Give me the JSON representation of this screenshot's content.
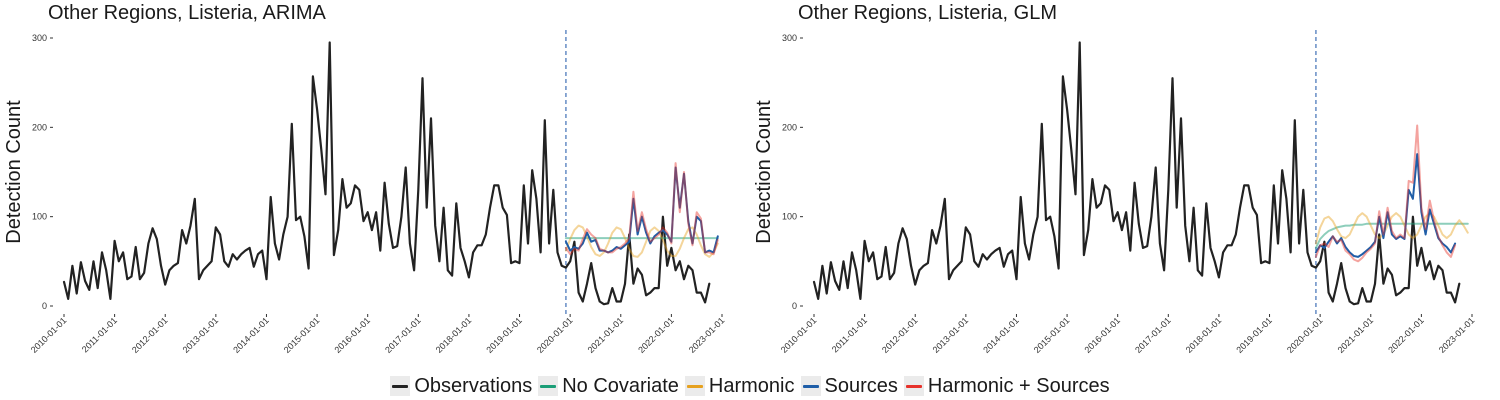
{
  "legend": [
    {
      "label": "Observations",
      "color": "#222222"
    },
    {
      "label": "No Covariate",
      "color": "#1b9e77"
    },
    {
      "label": "Harmonic",
      "color": "#e6a11f"
    },
    {
      "label": "Sources",
      "color": "#1f5ea8"
    },
    {
      "label": "Harmonic + Sources",
      "color": "#e7322b"
    }
  ],
  "chart_data": [
    {
      "type": "line",
      "title": "Other Regions, Listeria, ARIMA",
      "xlabel": "",
      "ylabel": "Detection Count",
      "ylim": [
        0,
        300
      ],
      "yticks": [
        "0",
        "100",
        "200",
        "300"
      ],
      "xlim": [
        "2010-01-01",
        "2023-01-01"
      ],
      "xticks": [
        "2010-01-01",
        "2011-01-01",
        "2012-01-01",
        "2013-01-01",
        "2014-01-01",
        "2015-01-01",
        "2016-01-01",
        "2017-01-01",
        "2018-01-01",
        "2019-01-01",
        "2020-01-01",
        "2021-01-01",
        "2022-01-01",
        "2023-01-01"
      ],
      "vline": "2019-12-01",
      "grid": false,
      "legend_position": "bottom",
      "series": [
        {
          "name": "Observations",
          "color": "#222222",
          "x_start": "2010-01",
          "interval": "month",
          "values": [
            27,
            8,
            45,
            14,
            49,
            28,
            18,
            50,
            20,
            60,
            40,
            8,
            73,
            50,
            60,
            30,
            33,
            66,
            30,
            37,
            70,
            87,
            75,
            45,
            24,
            40,
            45,
            48,
            85,
            70,
            90,
            120,
            30,
            40,
            45,
            50,
            88,
            80,
            50,
            44,
            58,
            52,
            58,
            62,
            65,
            44,
            58,
            62,
            30,
            122,
            70,
            52,
            80,
            100,
            204,
            96,
            100,
            78,
            42,
            257,
            220,
            175,
            125,
            295,
            57,
            85,
            142,
            110,
            115,
            135,
            130,
            95,
            105,
            85,
            105,
            62,
            138,
            92,
            65,
            67,
            100,
            155,
            70,
            40,
            130,
            255,
            110,
            210,
            90,
            50,
            110,
            40,
            34,
            115,
            65,
            50,
            32,
            60,
            68,
            68,
            80,
            110,
            135,
            135,
            110,
            102,
            48,
            50,
            48,
            135,
            70,
            152,
            120,
            60,
            208,
            70,
            130,
            60,
            45,
            43,
            50,
            72,
            15,
            5,
            25,
            48,
            20,
            5,
            2,
            3,
            20,
            5,
            5,
            25,
            80,
            25,
            42,
            35,
            12,
            15,
            20,
            20,
            100,
            45,
            65,
            40,
            50,
            30,
            45,
            40,
            15,
            15,
            4,
            25
          ]
        },
        {
          "name": "No Covariate",
          "color": "#1b9e77",
          "opacity": 0.5,
          "x_start": "2019-12",
          "interval": "month",
          "values": [
            76,
            76,
            76,
            76,
            76,
            76,
            76,
            76,
            76,
            76,
            76,
            76,
            76,
            76,
            76,
            76,
            76,
            76,
            76,
            76,
            76,
            76,
            76,
            76,
            76,
            76,
            76,
            76,
            76,
            76,
            76,
            76,
            76,
            76,
            76,
            76,
            76
          ]
        },
        {
          "name": "Harmonic",
          "color": "#e6a11f",
          "opacity": 0.45,
          "x_start": "2019-12",
          "interval": "month",
          "values": [
            62,
            75,
            85,
            90,
            88,
            78,
            66,
            58,
            56,
            60,
            70,
            82,
            88,
            86,
            76,
            64,
            56,
            55,
            60,
            72,
            84,
            88,
            84,
            74,
            62,
            56,
            56,
            64,
            76,
            86,
            88,
            80,
            68,
            58,
            55,
            60,
            70
          ]
        },
        {
          "name": "Sources",
          "color": "#1f5ea8",
          "x_start": "2019-12",
          "interval": "month",
          "values": [
            72,
            62,
            66,
            64,
            70,
            82,
            72,
            74,
            62,
            62,
            60,
            62,
            66,
            64,
            68,
            72,
            120,
            80,
            100,
            82,
            70,
            78,
            82,
            85,
            80,
            72,
            155,
            110,
            148,
            95,
            70,
            100,
            95,
            60,
            62,
            60,
            78
          ]
        },
        {
          "name": "Harmonic + Sources",
          "color": "#e7322b",
          "opacity": 0.45,
          "x_start": "2019-12",
          "interval": "month",
          "values": [
            65,
            58,
            64,
            62,
            75,
            86,
            80,
            76,
            64,
            62,
            60,
            60,
            64,
            66,
            70,
            76,
            128,
            84,
            105,
            86,
            72,
            76,
            80,
            88,
            82,
            70,
            160,
            105,
            150,
            92,
            68,
            105,
            98,
            60,
            60,
            58,
            74
          ]
        }
      ]
    },
    {
      "type": "line",
      "title": "Other Regions, Listeria, GLM",
      "xlabel": "",
      "ylabel": "Detection Count",
      "ylim": [
        0,
        300
      ],
      "yticks": [
        "0",
        "100",
        "200",
        "300"
      ],
      "xlim": [
        "2010-01-01",
        "2023-01-01"
      ],
      "xticks": [
        "2010-01-01",
        "2011-01-01",
        "2012-01-01",
        "2013-01-01",
        "2014-01-01",
        "2015-01-01",
        "2016-01-01",
        "2017-01-01",
        "2018-01-01",
        "2019-01-01",
        "2020-01-01",
        "2021-01-01",
        "2022-01-01",
        "2023-01-01"
      ],
      "vline": "2019-12-01",
      "grid": false,
      "legend_position": "bottom",
      "series": [
        {
          "name": "Observations",
          "color": "#222222",
          "x_start": "2010-01",
          "interval": "month",
          "values": [
            27,
            8,
            45,
            14,
            49,
            28,
            18,
            50,
            20,
            60,
            40,
            8,
            73,
            50,
            60,
            30,
            33,
            66,
            30,
            37,
            70,
            87,
            75,
            45,
            24,
            40,
            45,
            48,
            85,
            70,
            90,
            120,
            30,
            40,
            45,
            50,
            88,
            80,
            50,
            44,
            58,
            52,
            58,
            62,
            65,
            44,
            58,
            62,
            30,
            122,
            70,
            52,
            80,
            100,
            204,
            96,
            100,
            78,
            42,
            257,
            220,
            175,
            125,
            295,
            57,
            85,
            142,
            110,
            115,
            135,
            130,
            95,
            105,
            85,
            105,
            62,
            138,
            92,
            65,
            67,
            100,
            155,
            70,
            40,
            130,
            255,
            110,
            210,
            90,
            50,
            110,
            40,
            34,
            115,
            65,
            50,
            32,
            60,
            68,
            68,
            80,
            110,
            135,
            135,
            110,
            102,
            48,
            50,
            48,
            135,
            70,
            152,
            120,
            60,
            208,
            70,
            130,
            60,
            45,
            43,
            50,
            72,
            15,
            5,
            25,
            48,
            20,
            5,
            2,
            3,
            20,
            5,
            5,
            25,
            80,
            25,
            42,
            35,
            12,
            15,
            20,
            20,
            100,
            45,
            65,
            40,
            50,
            30,
            45,
            40,
            15,
            15,
            4,
            25
          ]
        },
        {
          "name": "No Covariate",
          "color": "#1b9e77",
          "opacity": 0.5,
          "x_start": "2019-12",
          "interval": "month",
          "values": [
            65,
            75,
            80,
            84,
            86,
            88,
            89,
            90,
            90,
            91,
            91,
            91,
            92,
            92,
            92,
            92,
            92,
            92,
            92,
            92,
            92,
            92,
            92,
            92,
            92,
            92,
            92,
            92,
            92,
            92,
            92,
            92,
            92,
            92,
            92,
            92,
            92
          ]
        },
        {
          "name": "Harmonic",
          "color": "#e6a11f",
          "opacity": 0.45,
          "x_start": "2019-12",
          "interval": "month",
          "values": [
            70,
            88,
            98,
            100,
            95,
            86,
            78,
            76,
            80,
            90,
            100,
            104,
            100,
            90,
            80,
            76,
            80,
            90,
            100,
            104,
            100,
            90,
            80,
            76,
            80,
            90,
            100,
            104,
            100,
            90,
            80,
            76,
            80,
            90,
            96,
            90,
            82
          ]
        },
        {
          "name": "Sources",
          "color": "#1f5ea8",
          "x_start": "2019-12",
          "interval": "month",
          "values": [
            60,
            68,
            65,
            72,
            78,
            70,
            76,
            66,
            60,
            56,
            55,
            58,
            62,
            66,
            72,
            100,
            76,
            105,
            80,
            75,
            78,
            75,
            130,
            120,
            170,
            105,
            80,
            108,
            92,
            76,
            70,
            66,
            60,
            70
          ]
        },
        {
          "name": "Harmonic + Sources",
          "color": "#e7322b",
          "opacity": 0.45,
          "x_start": "2019-12",
          "interval": "month",
          "values": [
            55,
            68,
            70,
            66,
            78,
            72,
            74,
            62,
            58,
            52,
            50,
            54,
            60,
            64,
            70,
            106,
            80,
            110,
            84,
            76,
            80,
            76,
            140,
            138,
            202,
            110,
            86,
            118,
            96,
            78,
            68,
            60,
            55,
            68
          ]
        }
      ]
    }
  ]
}
